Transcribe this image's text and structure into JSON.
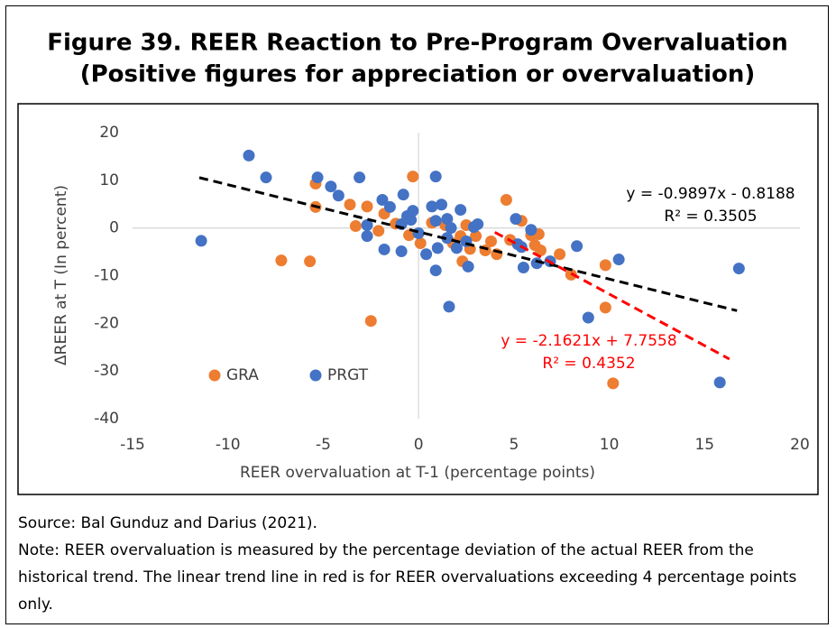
{
  "chart_data": {
    "type": "scatter",
    "title": "Figure 39. REER Reaction to Pre-Program Overvaluation",
    "subtitle": "(Positive figures for appreciation or overvaluation)",
    "xlabel": "REER overvaluation at T-1 (percentage points)",
    "ylabel": "ΔREER at T (In percent)",
    "xlim": [
      -15,
      20
    ],
    "ylim": [
      -40,
      20
    ],
    "xticks": [
      -15,
      -10,
      -5,
      0,
      5,
      10,
      15,
      20
    ],
    "yticks": [
      -40,
      -30,
      -20,
      -10,
      0,
      10,
      20
    ],
    "legend": "lower left",
    "series": [
      {
        "name": "GRA",
        "color": "#ed7d31",
        "x": [
          -5.4,
          -5.4,
          -3.6,
          -2.7,
          -1.8,
          -3.3,
          -2.1,
          -7.2,
          -5.7,
          -2.5,
          -0.3,
          -1.2,
          -0.5,
          0.1,
          0.7,
          1.4,
          1.8,
          2.2,
          2.5,
          2.3,
          2.7,
          3.5,
          3.8,
          4.1,
          4.6,
          5.4,
          5.9,
          6.3,
          6.1,
          6.4,
          7.4,
          8.0,
          9.8,
          9.8,
          10.2,
          4.8,
          3.0
        ],
        "values": [
          9.3,
          4.4,
          4.9,
          4.5,
          3.0,
          0.4,
          -0.6,
          -6.8,
          -7.0,
          -19.5,
          10.8,
          0.9,
          -1.5,
          -3.2,
          1.1,
          0.6,
          -3.2,
          -1.7,
          0.6,
          -7.0,
          -4.4,
          -4.7,
          -2.8,
          -5.5,
          5.9,
          1.5,
          -1.5,
          -1.3,
          -3.6,
          -4.7,
          -5.5,
          -9.8,
          -7.8,
          -16.7,
          -32.6,
          -2.5,
          -1.7
        ]
      },
      {
        "name": "PRGT",
        "color": "#4472c4",
        "x": [
          -11.4,
          -8.9,
          -8.0,
          -5.3,
          -4.6,
          -4.2,
          -3.1,
          -2.7,
          -2.7,
          -1.9,
          -1.5,
          -0.8,
          -0.6,
          -0.3,
          -1.8,
          -0.9,
          0.0,
          0.4,
          0.9,
          0.7,
          1.2,
          0.9,
          1.5,
          1.7,
          1.5,
          1.0,
          0.9,
          1.6,
          2.0,
          2.2,
          2.5,
          2.6,
          2.9,
          3.1,
          5.1,
          5.2,
          5.4,
          5.5,
          5.9,
          6.2,
          6.9,
          8.3,
          8.9,
          10.5,
          15.8,
          16.8,
          -0.9,
          -0.4
        ],
        "values": [
          -2.7,
          15.2,
          10.6,
          10.6,
          8.7,
          6.8,
          10.6,
          0.6,
          -1.7,
          5.9,
          4.4,
          7.0,
          2.5,
          3.6,
          -4.5,
          -4.9,
          -1.1,
          -5.5,
          10.8,
          4.5,
          4.9,
          1.5,
          1.9,
          0.0,
          -2.1,
          -4.2,
          -8.9,
          -16.5,
          -4.2,
          3.8,
          -2.8,
          -8.1,
          0.2,
          0.8,
          1.9,
          -3.4,
          -4.0,
          -8.3,
          -0.4,
          -7.4,
          -7.0,
          -3.8,
          -18.8,
          -6.6,
          -32.4,
          -8.5,
          0.8,
          1.7
        ]
      }
    ],
    "trendlines": [
      {
        "color": "#000000",
        "slope": -0.9897,
        "intercept": -0.8188,
        "x_range": [
          -11.5,
          16.7
        ],
        "equation": "y = -0.9897x - 0.8188",
        "r2": "R² = 0.3505"
      },
      {
        "color": "#ff0000",
        "slope": -2.1621,
        "intercept": 7.7558,
        "x_range": [
          4,
          16.3
        ],
        "equation": "y = -2.1621x + 7.7558",
        "r2": "R² = 0.4352"
      }
    ]
  },
  "notes": {
    "source": "Source: Bal Gunduz and Darius (2021).",
    "note": "Note: REER overvaluation is measured by the percentage deviation of the actual REER from the historical trend. The linear trend line in red is for REER overvaluations exceeding 4 percentage points only."
  }
}
